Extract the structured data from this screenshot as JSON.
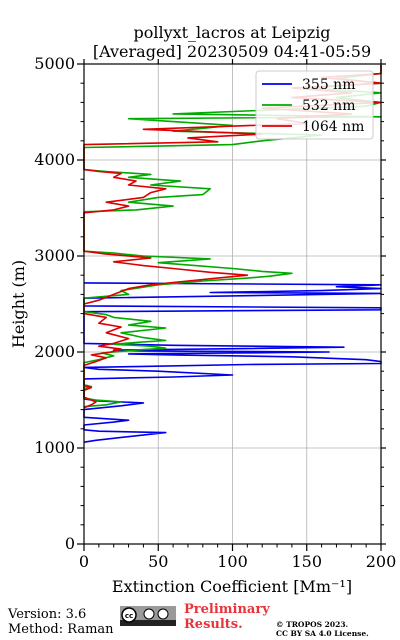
{
  "chart_data": {
    "type": "line",
    "title": "pollyxt_lacros at Leipzig",
    "subtitle": "[Averaged] 20230509 04:41-05:59",
    "xlabel": "Extinction Coefficient [Mm⁻¹]",
    "ylabel": "Height (m)",
    "xlim": [
      0,
      200
    ],
    "ylim": [
      0,
      5000
    ],
    "xticks": [
      0,
      50,
      100,
      150,
      200
    ],
    "yticks": [
      0,
      1000,
      2000,
      3000,
      4000,
      5000
    ],
    "grid": true,
    "legend_position": "top-right",
    "series": [
      {
        "name": "355 nm",
        "color": "#0000ee",
        "points": [
          [
            0,
            1060
          ],
          [
            8,
            1080
          ],
          [
            25,
            1110
          ],
          [
            55,
            1160
          ],
          [
            10,
            1175
          ],
          [
            0,
            1190
          ],
          [
            0,
            1240
          ],
          [
            20,
            1270
          ],
          [
            30,
            1290
          ],
          [
            0,
            1320
          ],
          [
            0,
            1400
          ],
          [
            25,
            1440
          ],
          [
            40,
            1470
          ],
          [
            10,
            1490
          ],
          [
            0,
            1510
          ],
          [
            0,
            1720
          ],
          [
            60,
            1740
          ],
          [
            100,
            1760
          ],
          [
            50,
            1800
          ],
          [
            10,
            1820
          ],
          [
            0,
            1840
          ],
          [
            40,
            1850
          ],
          [
            110,
            1870
          ],
          [
            200,
            1880
          ],
          [
            200,
            1900
          ],
          [
            190,
            1920
          ],
          [
            140,
            1950
          ],
          [
            60,
            1970
          ],
          [
            30,
            1980
          ],
          [
            100,
            1990
          ],
          [
            165,
            2000
          ],
          [
            40,
            2010
          ],
          [
            20,
            2020
          ],
          [
            80,
            2030
          ],
          [
            175,
            2050
          ],
          [
            60,
            2070
          ],
          [
            0,
            2090
          ],
          [
            0,
            2420
          ],
          [
            200,
            2440
          ],
          [
            200,
            2460
          ],
          [
            0,
            2480
          ],
          [
            0,
            2560
          ],
          [
            120,
            2590
          ],
          [
            200,
            2610
          ],
          [
            85,
            2620
          ],
          [
            160,
            2640
          ],
          [
            200,
            2660
          ],
          [
            170,
            2680
          ],
          [
            200,
            2700
          ],
          [
            0,
            2720
          ]
        ]
      },
      {
        "name": "532 nm",
        "color": "#00aa00",
        "points": [
          [
            0,
            1430
          ],
          [
            15,
            1450
          ],
          [
            25,
            1480
          ],
          [
            8,
            1500
          ],
          [
            0,
            1520
          ],
          [
            0,
            1620
          ],
          [
            5,
            1640
          ],
          [
            0,
            1660
          ],
          [
            0,
            1890
          ],
          [
            10,
            1920
          ],
          [
            20,
            1960
          ],
          [
            12,
            1990
          ],
          [
            35,
            2020
          ],
          [
            55,
            2040
          ],
          [
            45,
            2060
          ],
          [
            20,
            2080
          ],
          [
            35,
            2100
          ],
          [
            55,
            2120
          ],
          [
            40,
            2150
          ],
          [
            25,
            2200
          ],
          [
            55,
            2250
          ],
          [
            30,
            2280
          ],
          [
            45,
            2320
          ],
          [
            20,
            2360
          ],
          [
            15,
            2390
          ],
          [
            0,
            2420
          ],
          [
            0,
            2560
          ],
          [
            30,
            2600
          ],
          [
            25,
            2640
          ],
          [
            50,
            2700
          ],
          [
            80,
            2740
          ],
          [
            110,
            2770
          ],
          [
            125,
            2790
          ],
          [
            140,
            2820
          ],
          [
            120,
            2840
          ],
          [
            100,
            2870
          ],
          [
            75,
            2900
          ],
          [
            50,
            2930
          ],
          [
            85,
            2970
          ],
          [
            40,
            3000
          ],
          [
            20,
            3030
          ],
          [
            0,
            3050
          ],
          [
            0,
            3460
          ],
          [
            35,
            3480
          ],
          [
            60,
            3520
          ],
          [
            30,
            3560
          ],
          [
            50,
            3610
          ],
          [
            80,
            3640
          ],
          [
            85,
            3700
          ],
          [
            45,
            3740
          ],
          [
            65,
            3780
          ],
          [
            30,
            3820
          ],
          [
            45,
            3850
          ],
          [
            15,
            3880
          ],
          [
            0,
            3900
          ],
          [
            0,
            4130
          ],
          [
            100,
            4160
          ],
          [
            120,
            4200
          ],
          [
            160,
            4260
          ],
          [
            60,
            4300
          ],
          [
            100,
            4360
          ],
          [
            60,
            4400
          ],
          [
            30,
            4430
          ],
          [
            200,
            4450
          ],
          [
            60,
            4480
          ],
          [
            190,
            4560
          ],
          [
            200,
            4600
          ],
          [
            170,
            4650
          ],
          [
            200,
            4700
          ],
          [
            150,
            4750
          ],
          [
            200,
            4800
          ],
          [
            170,
            4850
          ],
          [
            200,
            4900
          ],
          [
            200,
            4950
          ],
          [
            200,
            4990
          ]
        ]
      },
      {
        "name": "1064 nm",
        "color": "#dd0000",
        "points": [
          [
            0,
            1420
          ],
          [
            5,
            1450
          ],
          [
            8,
            1480
          ],
          [
            3,
            1510
          ],
          [
            0,
            1530
          ],
          [
            0,
            1600
          ],
          [
            5,
            1630
          ],
          [
            0,
            1650
          ],
          [
            0,
            1860
          ],
          [
            8,
            1900
          ],
          [
            15,
            1940
          ],
          [
            5,
            1970
          ],
          [
            18,
            2000
          ],
          [
            25,
            2030
          ],
          [
            10,
            2060
          ],
          [
            20,
            2090
          ],
          [
            30,
            2140
          ],
          [
            15,
            2200
          ],
          [
            25,
            2260
          ],
          [
            10,
            2300
          ],
          [
            15,
            2360
          ],
          [
            0,
            2400
          ],
          [
            0,
            2500
          ],
          [
            10,
            2540
          ],
          [
            20,
            2600
          ],
          [
            30,
            2660
          ],
          [
            45,
            2700
          ],
          [
            70,
            2740
          ],
          [
            90,
            2770
          ],
          [
            110,
            2800
          ],
          [
            85,
            2830
          ],
          [
            60,
            2870
          ],
          [
            40,
            2900
          ],
          [
            20,
            2940
          ],
          [
            45,
            2980
          ],
          [
            15,
            3020
          ],
          [
            0,
            3050
          ],
          [
            0,
            3450
          ],
          [
            20,
            3480
          ],
          [
            30,
            3520
          ],
          [
            15,
            3560
          ],
          [
            40,
            3610
          ],
          [
            45,
            3660
          ],
          [
            55,
            3700
          ],
          [
            30,
            3740
          ],
          [
            35,
            3780
          ],
          [
            20,
            3820
          ],
          [
            25,
            3860
          ],
          [
            10,
            3880
          ],
          [
            0,
            3900
          ],
          [
            0,
            4160
          ],
          [
            90,
            4190
          ],
          [
            70,
            4230
          ],
          [
            120,
            4270
          ],
          [
            40,
            4320
          ],
          [
            150,
            4380
          ],
          [
            130,
            4430
          ],
          [
            180,
            4480
          ],
          [
            120,
            4540
          ],
          [
            200,
            4600
          ],
          [
            140,
            4650
          ],
          [
            180,
            4700
          ],
          [
            140,
            4750
          ],
          [
            200,
            4800
          ],
          [
            160,
            4860
          ],
          [
            200,
            4900
          ],
          [
            200,
            4960
          ],
          [
            200,
            4990
          ]
        ]
      }
    ]
  },
  "footer": {
    "version": "Version: 3.6",
    "method": "Method: Raman",
    "prelim_line1": "Preliminary",
    "prelim_line2": "Results.",
    "copyright_line1": "© TROPOS 2023.",
    "copyright_line2": "CC BY SA 4.0 License.",
    "badge_text": "cc"
  }
}
